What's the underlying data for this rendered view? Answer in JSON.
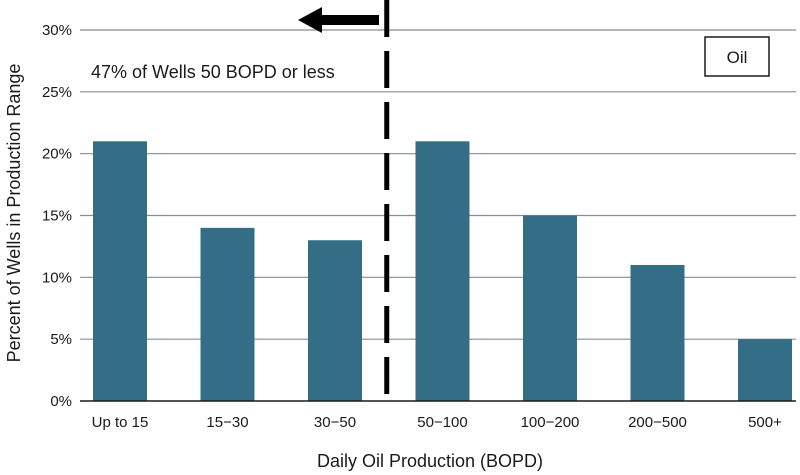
{
  "chart_data": {
    "type": "bar",
    "categories": [
      "Up to 15",
      "15−30",
      "30−50",
      "50−100",
      "100−200",
      "200−500",
      "500+"
    ],
    "series": [
      {
        "values": [
          21,
          14,
          13,
          21,
          15,
          11,
          5
        ]
      }
    ],
    "ylim": [
      0,
      30
    ],
    "yticks": [
      0,
      5,
      10,
      15,
      20,
      25,
      30
    ],
    "ytick_labels": [
      "0%",
      "5%",
      "10%",
      "15%",
      "20%",
      "25%",
      "30%"
    ],
    "xlabel": "Daily Oil Production (BOPD)",
    "ylabel": "Percent of Wells in Production Range",
    "grid": true,
    "legend": {
      "label": "Oil",
      "placement": "top-right"
    },
    "annotations": {
      "text": "47% of Wells 50 BOPD or less",
      "cutoff_between": [
        "30−50",
        "50−100"
      ],
      "arrow_direction": "left"
    },
    "colors": {
      "bar": "#336e86",
      "grid": "#8c8c8c",
      "axis": "#1a1a1a",
      "cutoff_line": "#000000"
    }
  }
}
